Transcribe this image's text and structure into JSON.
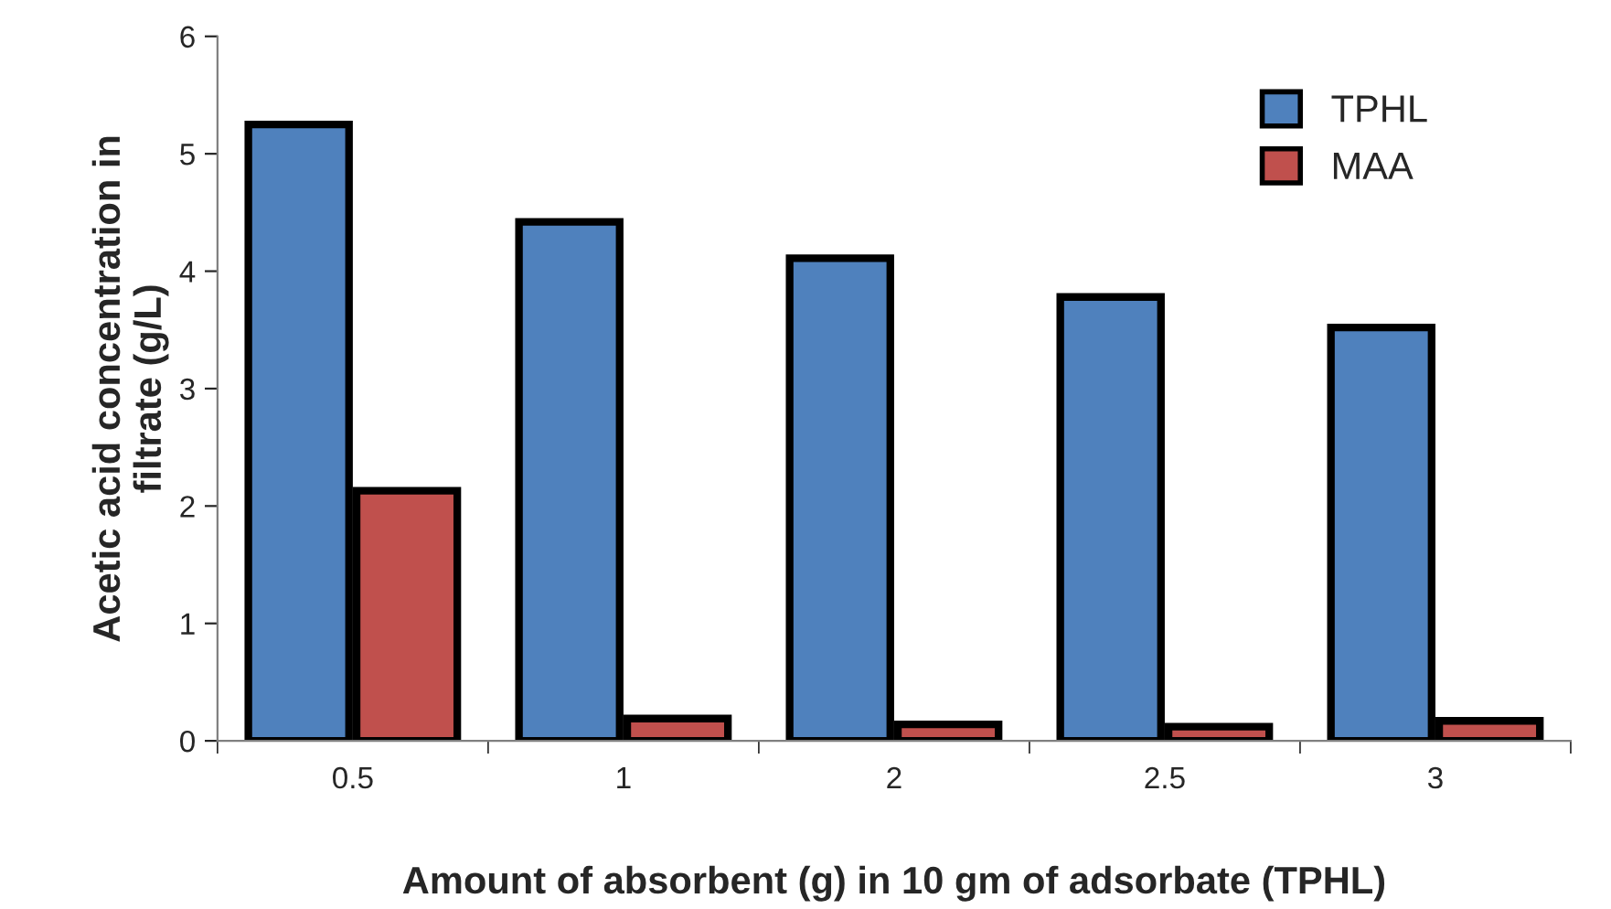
{
  "chart_data": {
    "type": "bar",
    "xlabel": "Amount of absorbent (g) in 10 gm of adsorbate (TPHL)",
    "ylabel": "Acetic acid concentration in filtrate (g/L)",
    "categories": [
      "0.5",
      "1",
      "2",
      "2.5",
      "3"
    ],
    "series": [
      {
        "name": "TPHL",
        "color": "#4f81bd",
        "values": [
          5.25,
          4.42,
          4.11,
          3.78,
          3.52
        ]
      },
      {
        "name": "MAA",
        "color": "#c0504d",
        "values": [
          2.13,
          0.19,
          0.14,
          0.12,
          0.17
        ]
      }
    ],
    "ylim": [
      0,
      6
    ],
    "yticks": [
      0,
      1,
      2,
      3,
      4,
      5,
      6
    ],
    "grid": false,
    "legend": "top right"
  }
}
